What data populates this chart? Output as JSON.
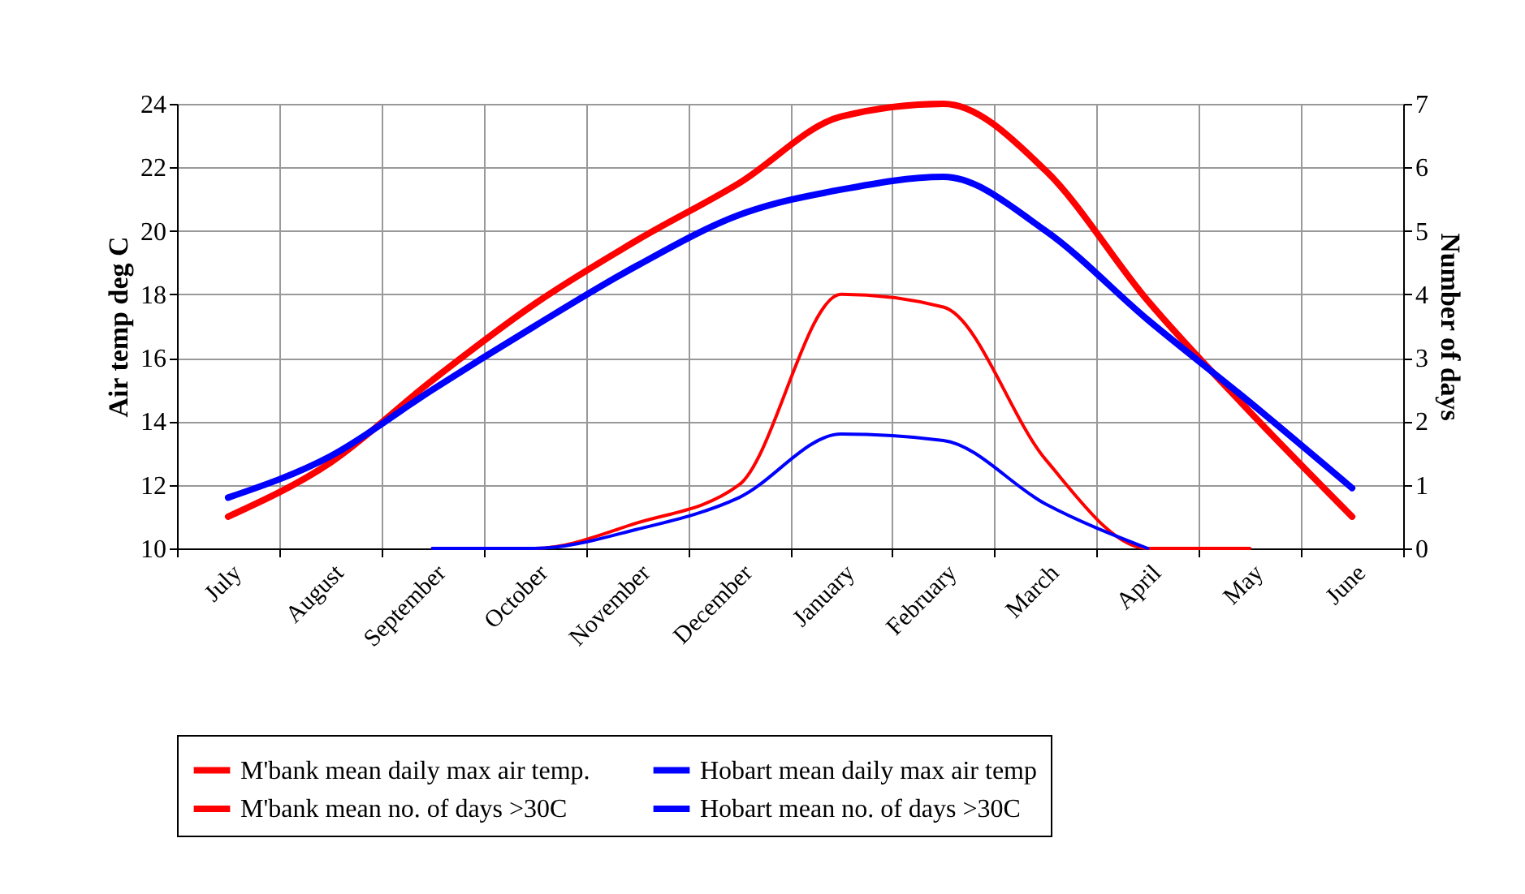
{
  "chart_data": {
    "type": "line",
    "categories": [
      "July",
      "August",
      "September",
      "October",
      "November",
      "December",
      "January",
      "February",
      "March",
      "April",
      "May",
      "June"
    ],
    "ylabel": "Air temp deg C",
    "y2label": "Number of days",
    "ylim": [
      10,
      24
    ],
    "yticks": [
      10,
      12,
      14,
      16,
      18,
      20,
      22,
      24
    ],
    "y2lim": [
      0,
      7
    ],
    "y2ticks": [
      0,
      1,
      2,
      3,
      4,
      5,
      6,
      7
    ],
    "grid": true,
    "legend": "bottom",
    "series": [
      {
        "name": "M'bank mean daily max air temp.",
        "color": "#ff0000",
        "values": [
          11.0,
          12.7,
          15.3,
          17.7,
          19.7,
          21.5,
          23.6,
          24.0,
          21.9,
          17.8,
          14.3,
          11.0
        ]
      },
      {
        "name": "Hobart mean daily max air temp",
        "color": "#0000ff",
        "values": [
          11.6,
          12.9,
          15.0,
          17.0,
          18.9,
          20.5,
          21.3,
          21.7,
          20.0,
          17.2,
          14.6,
          11.9
        ]
      },
      {
        "name": "M'bank mean no. of days >30C",
        "color": "#ff0000",
        "axis": "y2",
        "values": [
          null,
          null,
          0,
          0,
          0.4,
          1.0,
          4.0,
          3.8,
          1.4,
          0,
          0,
          null
        ]
      },
      {
        "name": "Hobart mean no. of days >30C",
        "color": "#0000ff",
        "axis": "y2",
        "values": [
          null,
          null,
          0,
          0,
          0.3,
          0.8,
          1.8,
          1.7,
          0.7,
          0,
          null,
          null
        ]
      }
    ]
  }
}
